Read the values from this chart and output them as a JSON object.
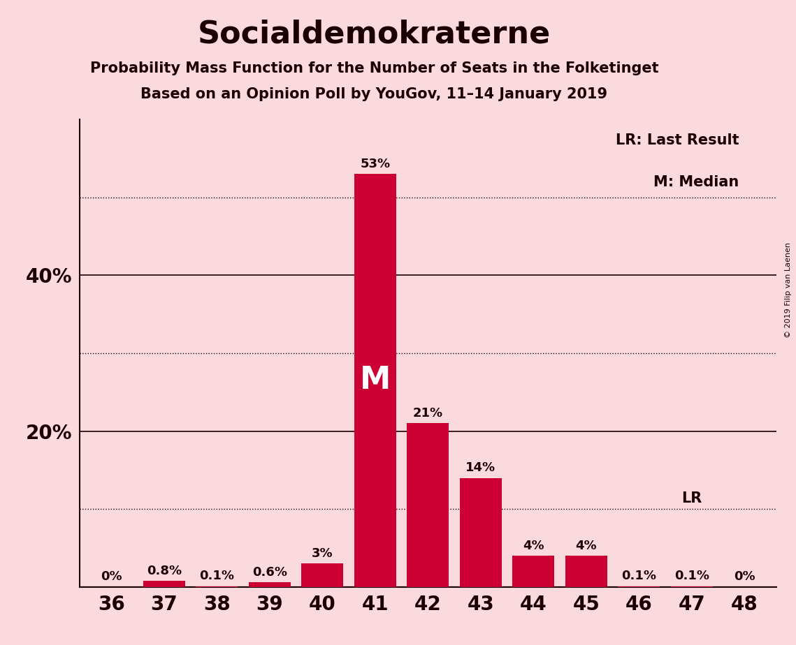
{
  "title": "Socialdemokraterne",
  "subtitle1": "Probability Mass Function for the Number of Seats in the Folketinget",
  "subtitle2": "Based on an Opinion Poll by YouGov, 11–14 January 2019",
  "copyright": "© 2019 Filip van Laenen",
  "seats": [
    36,
    37,
    38,
    39,
    40,
    41,
    42,
    43,
    44,
    45,
    46,
    47,
    48
  ],
  "values": [
    0.0,
    0.8,
    0.1,
    0.6,
    3.0,
    53.0,
    21.0,
    14.0,
    4.0,
    4.0,
    0.1,
    0.1,
    0.0
  ],
  "bar_color": "#CC0033",
  "background_color": "#FADADD",
  "text_color": "#1a0000",
  "median_seat": 41,
  "lr_seat": 47,
  "solid_yticks": [
    0,
    20,
    40
  ],
  "dotted_yticks": [
    10,
    30,
    50
  ],
  "bar_labels": [
    "0%",
    "0.8%",
    "0.1%",
    "0.6%",
    "3%",
    "53%",
    "21%",
    "14%",
    "4%",
    "4%",
    "0.1%",
    "0.1%",
    "0%"
  ],
  "bar_label_color_inside": "#ffffff",
  "bar_label_color_outside": "#1a0000",
  "ylim_max": 60
}
